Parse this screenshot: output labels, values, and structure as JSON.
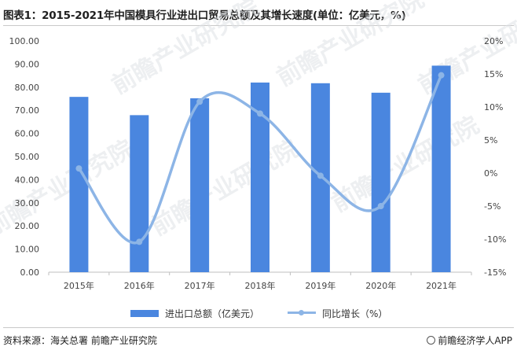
{
  "title": "图表1：2015-2021年中国模具行业进出口贸易总额及其增长速度(单位：亿美元，%)",
  "watermark": "前瞻产业研究院",
  "source": "资料来源：海关总署 前瞻产业研究院",
  "brand": "前瞻经济学人APP",
  "colors": {
    "bar": "#4a86df",
    "line": "#8db5e6",
    "axis": "#bfbfbf"
  },
  "chart_data": {
    "type": "bar",
    "categories": [
      "2015年",
      "2016年",
      "2017年",
      "2018年",
      "2019年",
      "2020年",
      "2021年"
    ],
    "series": [
      {
        "name": "进出口总额（亿美元）",
        "type": "bar",
        "axis": "left",
        "values": [
          75.8,
          67.9,
          75.2,
          82.0,
          81.7,
          77.6,
          89.3
        ]
      },
      {
        "name": "同比增长（%）",
        "type": "line",
        "axis": "right",
        "smooth": true,
        "values": [
          0.7,
          -10.4,
          10.8,
          9.0,
          -0.4,
          -5.0,
          14.8
        ]
      }
    ],
    "y_left": {
      "min": 0,
      "max": 100,
      "step": 10,
      "ticks": [
        "0.00",
        "10.00",
        "20.00",
        "30.00",
        "40.00",
        "50.00",
        "60.00",
        "70.00",
        "80.00",
        "90.00",
        "100.00"
      ]
    },
    "y_right": {
      "min": -15,
      "max": 20,
      "step": 5,
      "ticks": [
        "-15%",
        "-10%",
        "-5%",
        "0%",
        "5%",
        "10%",
        "15%",
        "20%"
      ]
    },
    "legend": {
      "position": "bottom",
      "items": [
        "进出口总额（亿美元）",
        "同比增长（%）"
      ]
    },
    "grid": false
  }
}
